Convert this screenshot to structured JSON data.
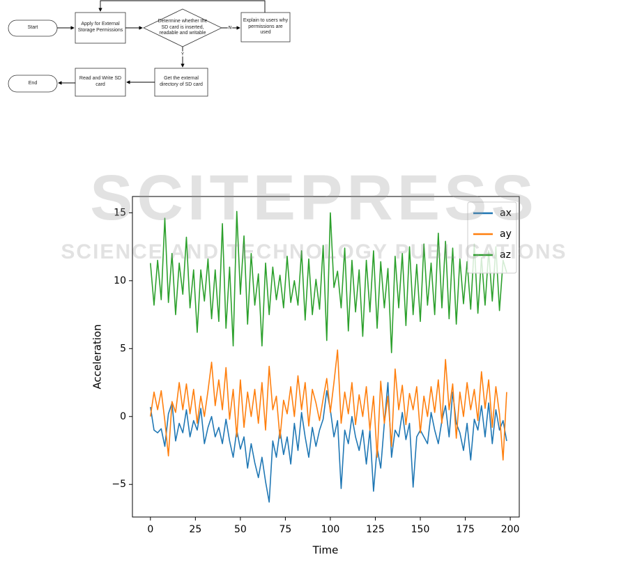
{
  "flowchart": {
    "nodes": [
      {
        "label": "Start"
      },
      {
        "label": "Apply for External Storage Permissions"
      },
      {
        "label": "Determine whether the SD card is inserted, readable and writable"
      },
      {
        "label": "Explain to users why permissions are used"
      },
      {
        "label": "Get the external directory of SD card"
      },
      {
        "label": "Read and Write SD card"
      },
      {
        "label": "End"
      }
    ],
    "edge_labels": [
      "N",
      "Y"
    ]
  },
  "watermark": {
    "title": "SCITEPRESS",
    "subtitle": "SCIENCE AND TECHNOLOGY PUBLICATIONS"
  },
  "chart_data": {
    "type": "line",
    "x_label": "Time",
    "y_label": "Acceleration",
    "x": [
      0,
      2,
      4,
      6,
      8,
      10,
      12,
      14,
      16,
      18,
      20,
      22,
      24,
      26,
      28,
      30,
      32,
      34,
      36,
      38,
      40,
      42,
      44,
      46,
      48,
      50,
      52,
      54,
      56,
      58,
      60,
      62,
      64,
      66,
      68,
      70,
      72,
      74,
      76,
      78,
      80,
      82,
      84,
      86,
      88,
      90,
      92,
      94,
      96,
      98,
      100,
      102,
      104,
      106,
      108,
      110,
      112,
      114,
      116,
      118,
      120,
      122,
      124,
      126,
      128,
      130,
      132,
      134,
      136,
      138,
      140,
      142,
      144,
      146,
      148,
      150,
      152,
      154,
      156,
      158,
      160,
      162,
      164,
      166,
      168,
      170,
      172,
      174,
      176,
      178,
      180,
      182,
      184,
      186,
      188,
      190,
      192,
      194,
      196,
      198
    ],
    "series": [
      {
        "name": "ax",
        "color": "#1f77b4",
        "values": [
          0.7,
          -1.0,
          -1.2,
          -0.9,
          -2.2,
          0.2,
          1.0,
          -1.8,
          -0.5,
          -1.2,
          0.5,
          -1.5,
          -0.3,
          -1.0,
          0.6,
          -2.0,
          -0.8,
          0.0,
          -1.5,
          -0.8,
          -2.0,
          -0.2,
          -1.8,
          -3.0,
          -1.0,
          -2.4,
          -1.5,
          -3.8,
          -2.0,
          -3.4,
          -4.5,
          -3.0,
          -4.8,
          -6.3,
          -1.8,
          -3.0,
          -1.0,
          -2.8,
          -1.5,
          -3.5,
          -0.5,
          -2.5,
          0.3,
          -1.5,
          -3.0,
          -0.8,
          -2.2,
          -1.0,
          -0.2,
          1.9,
          0.5,
          -1.5,
          -0.3,
          -5.3,
          -1.0,
          -2.0,
          0.0,
          -1.5,
          -2.5,
          -1.0,
          -3.5,
          -1.0,
          -5.5,
          -2.3,
          -3.8,
          -0.5,
          2.5,
          -3.0,
          -1.0,
          -1.5,
          0.3,
          -1.7,
          -0.5,
          -5.2,
          -1.5,
          -1.0,
          -1.5,
          -2.0,
          0.3,
          -1.0,
          -2.0,
          -0.3,
          0.8,
          -1.5,
          1.8,
          -0.5,
          -1.2,
          -2.5,
          -0.5,
          -3.2,
          -0.2,
          -1.0,
          0.8,
          -1.5,
          1.0,
          -2.0,
          0.5,
          -1.0,
          -0.3,
          -1.8
        ]
      },
      {
        "name": "ay",
        "color": "#ff7f0e",
        "values": [
          0.0,
          1.8,
          0.5,
          1.9,
          -0.3,
          -2.9,
          1.1,
          0.3,
          2.5,
          0.5,
          2.4,
          0.2,
          2.0,
          -0.5,
          1.5,
          0.0,
          1.9,
          4.0,
          0.8,
          2.7,
          0.5,
          3.6,
          -0.2,
          2.0,
          -1.5,
          2.7,
          -0.8,
          1.8,
          0.0,
          2.0,
          -0.5,
          2.5,
          -1.0,
          3.7,
          0.5,
          1.5,
          -1.6,
          1.2,
          0.2,
          2.2,
          0.0,
          3.0,
          0.5,
          2.5,
          -0.7,
          2.0,
          1.0,
          -0.3,
          1.3,
          2.8,
          0.3,
          2.5,
          4.9,
          -0.5,
          1.8,
          0.2,
          2.5,
          -0.6,
          1.6,
          0.0,
          2.2,
          -1.0,
          1.5,
          -3.0,
          2.6,
          -0.5,
          1.5,
          -2.2,
          3.5,
          0.5,
          2.3,
          -0.6,
          1.7,
          0.5,
          2.2,
          -1.2,
          1.5,
          0.0,
          2.2,
          0.3,
          2.7,
          -0.5,
          4.2,
          0.5,
          2.4,
          -1.6,
          1.8,
          0.0,
          2.5,
          0.5,
          2.0,
          -0.3,
          3.3,
          0.6,
          2.7,
          -0.8,
          2.2,
          0.2,
          -3.2,
          1.8
        ]
      },
      {
        "name": "az",
        "color": "#2ca02c",
        "values": [
          11.3,
          8.2,
          11.5,
          8.6,
          14.6,
          8.4,
          12.0,
          7.5,
          11.3,
          9.0,
          13.2,
          8.0,
          10.8,
          6.2,
          10.8,
          8.5,
          11.6,
          7.2,
          10.8,
          7.0,
          14.2,
          6.5,
          11.0,
          5.2,
          15.1,
          9.0,
          13.3,
          6.8,
          12.0,
          8.2,
          10.5,
          5.2,
          11.3,
          7.5,
          11.0,
          8.6,
          10.4,
          8.0,
          11.8,
          8.4,
          10.0,
          8.2,
          12.2,
          7.1,
          11.6,
          7.5,
          10.1,
          7.9,
          12.6,
          5.6,
          15.0,
          9.5,
          10.7,
          8.0,
          12.4,
          6.3,
          11.5,
          7.7,
          10.8,
          5.9,
          11.5,
          7.7,
          12.2,
          6.5,
          11.4,
          8.0,
          10.9,
          4.7,
          11.8,
          8.0,
          12.0,
          6.7,
          12.5,
          7.5,
          11.2,
          7.0,
          12.7,
          8.2,
          11.3,
          7.5,
          13.5,
          8.0,
          12.9,
          7.2,
          12.4,
          6.8,
          11.6,
          8.3,
          11.4,
          7.9,
          12.7,
          7.6,
          11.7,
          8.2,
          12.2,
          8.5,
          12.5,
          7.8,
          11.5,
          10.6
        ]
      }
    ],
    "xlim": [
      -10,
      205
    ],
    "ylim": [
      -7.4,
      16.2
    ],
    "xticks": [
      0,
      25,
      50,
      75,
      100,
      125,
      150,
      175,
      200
    ],
    "yticks": [
      {
        "value": -5,
        "label": "−5"
      },
      0,
      5,
      10,
      15
    ],
    "legend": "upper right"
  }
}
